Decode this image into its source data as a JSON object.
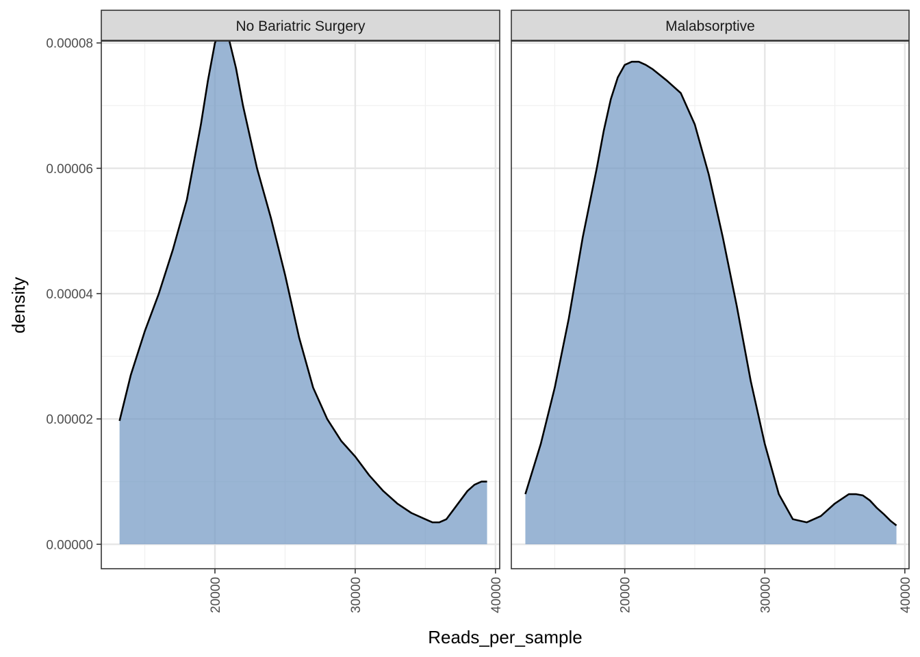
{
  "chart_data": {
    "type": "area",
    "subtype": "density (faceted)",
    "xlabel": "Reads_per_sample",
    "ylabel": "density",
    "xlim": [
      11900,
      40300
    ],
    "ylim": [
      -3.9e-06,
      8.03e-05
    ],
    "x_ticks": [
      20000,
      30000,
      40000
    ],
    "x_tick_labels": [
      "20000",
      "30000",
      "40000"
    ],
    "y_ticks": [
      0,
      2e-05,
      4e-05,
      6e-05,
      8e-05
    ],
    "y_tick_labels": [
      "0.00000",
      "0.00002",
      "0.00004",
      "0.00006",
      "0.00008"
    ],
    "grid": true,
    "fill_color": "#6f96c2",
    "line_color": "#000000",
    "facets": [
      {
        "label": "No Bariatric Surgery",
        "x": [
          13200,
          14000,
          15000,
          16000,
          17000,
          18000,
          19000,
          19500,
          20000,
          20500,
          21000,
          21500,
          22000,
          22500,
          23000,
          24000,
          25000,
          26000,
          27000,
          28000,
          29000,
          30000,
          31000,
          32000,
          33000,
          34000,
          35000,
          35500,
          36000,
          36500,
          37000,
          37500,
          38000,
          38500,
          39000,
          39400
        ],
        "y": [
          1.97e-05,
          2.7e-05,
          3.4e-05,
          4e-05,
          4.7e-05,
          5.5e-05,
          6.7e-05,
          7.4e-05,
          8e-05,
          8.26e-05,
          8.06e-05,
          7.6e-05,
          7e-05,
          6.5e-05,
          6e-05,
          5.2e-05,
          4.3e-05,
          3.3e-05,
          2.5e-05,
          2e-05,
          1.65e-05,
          1.4e-05,
          1.1e-05,
          8.5e-06,
          6.5e-06,
          5e-06,
          4e-06,
          3.5e-06,
          3.5e-06,
          4e-06,
          5.5e-06,
          7e-06,
          8.5e-06,
          9.5e-06,
          1e-05,
          1e-05
        ]
      },
      {
        "label": "Malabsorptive",
        "x": [
          12900,
          14000,
          15000,
          16000,
          17000,
          18000,
          18500,
          19000,
          19500,
          20000,
          20500,
          21000,
          21500,
          22000,
          23000,
          24000,
          25000,
          26000,
          27000,
          28000,
          29000,
          30000,
          31000,
          32000,
          33000,
          34000,
          35000,
          36000,
          36500,
          37000,
          37500,
          38000,
          38500,
          39000,
          39400
        ],
        "y": [
          8e-06,
          1.6e-05,
          2.5e-05,
          3.6e-05,
          4.9e-05,
          6e-05,
          6.6e-05,
          7.1e-05,
          7.45e-05,
          7.65e-05,
          7.7e-05,
          7.7e-05,
          7.65e-05,
          7.58e-05,
          7.4e-05,
          7.2e-05,
          6.7e-05,
          5.9e-05,
          4.9e-05,
          3.8e-05,
          2.6e-05,
          1.6e-05,
          8e-06,
          4e-06,
          3.5e-06,
          4.5e-06,
          6.5e-06,
          8e-06,
          8e-06,
          7.8e-06,
          7e-06,
          5.8e-06,
          4.8e-06,
          3.7e-06,
          3e-06
        ]
      }
    ]
  }
}
